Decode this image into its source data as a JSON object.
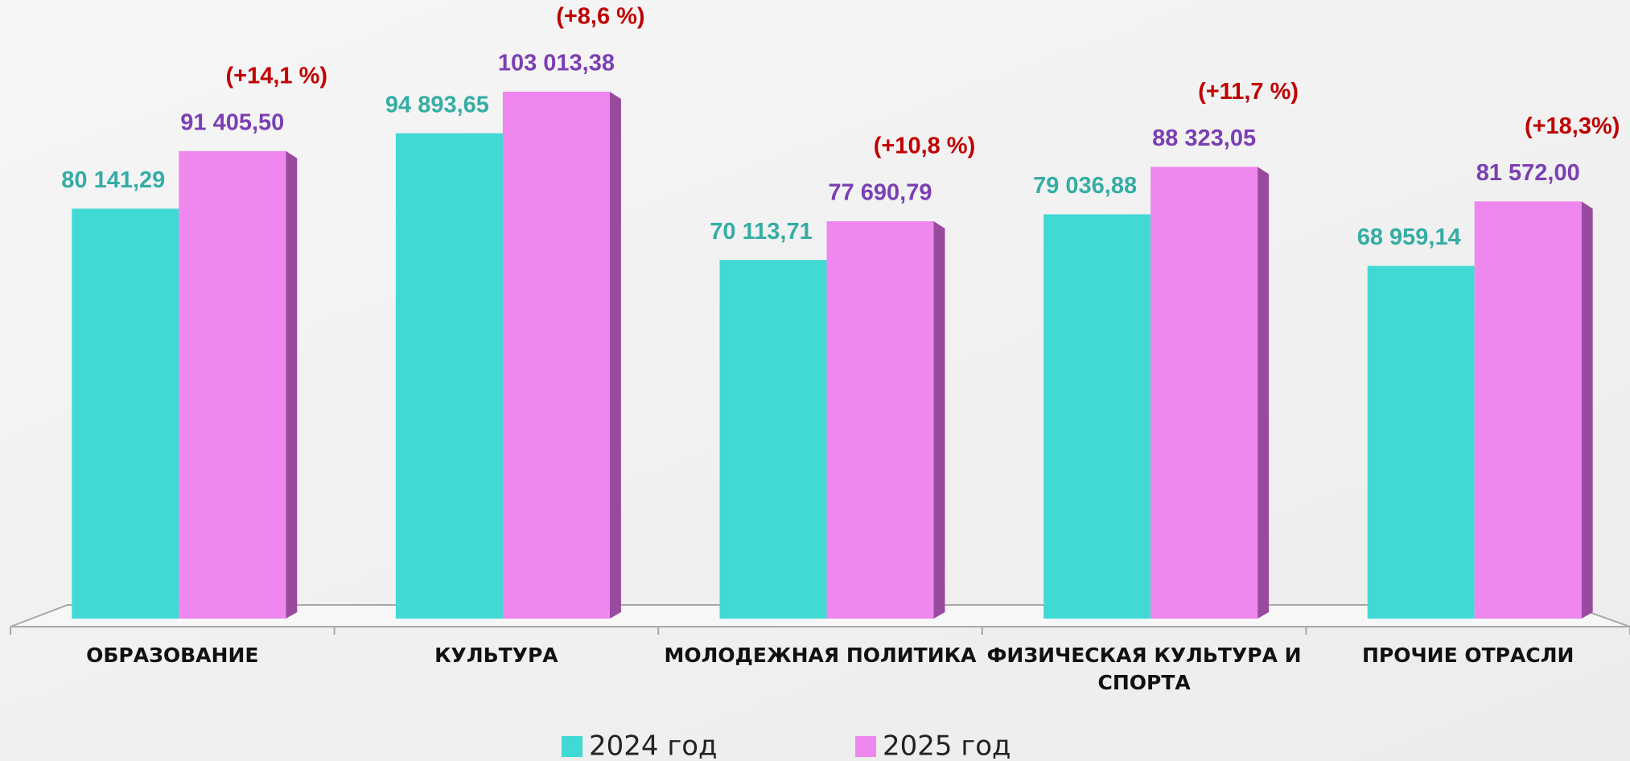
{
  "chart_data": {
    "type": "bar",
    "categories": [
      "ОБРАЗОВАНИЕ",
      "КУЛЬТУРА",
      "МОЛОДЕЖНАЯ ПОЛИТИКА",
      "ФИЗИЧЕСКАЯ КУЛЬТУРА И СПОРТА",
      "ПРОЧИЕ ОТРАСЛИ"
    ],
    "series": [
      {
        "name": "2024 год",
        "color": "#41d9d3",
        "values": [
          80141.29,
          94893.65,
          70113.71,
          79036.88,
          68959.14
        ],
        "value_labels": [
          "80 141,29",
          "94 893,65",
          "70 113,71",
          "79 036,88",
          "68 959,14"
        ]
      },
      {
        "name": "2025 год",
        "color": "#ee88ee",
        "values": [
          91405.5,
          103013.38,
          77690.79,
          88323.05,
          81572.0
        ],
        "value_labels": [
          "91 405,50",
          "103 013,38",
          "77 690,79",
          "88 323,05",
          "81 572,00"
        ]
      }
    ],
    "annotations": [
      "(+14,1 %)",
      "(+8,6 %)",
      "(+10,8 %)",
      "(+11,7 %)",
      "(+18,3%)"
    ],
    "legend": "bottom"
  }
}
